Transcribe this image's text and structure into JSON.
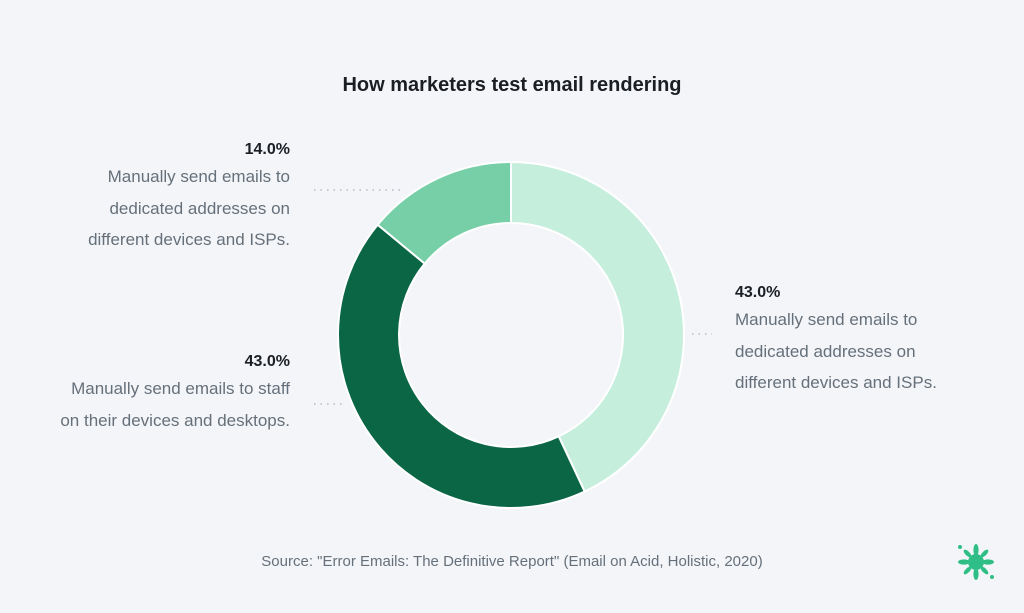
{
  "chart_data": {
    "type": "pie",
    "title": "How marketers test email rendering",
    "slices": [
      {
        "label": "Manually send emails to dedicated addresses on different devices and ISPs.",
        "value": 43.0,
        "value_label": "43.0%",
        "color": "#c6eedd"
      },
      {
        "label": "Manually send emails to staff on their devices and desktops.",
        "value": 43.0,
        "value_label": "43.0%",
        "color": "#0a6644"
      },
      {
        "label": "Manually send emails to dedicated addresses on different devices and ISPs.",
        "value": 14.0,
        "value_label": "14.0%",
        "color": "#76cfa6"
      }
    ],
    "donut": true
  },
  "footer": {
    "source": "Source: \"Error Emails: The Definitive Report\" (Email on Acid, Holistic, 2020)"
  },
  "logo_icon": "splat-logo-icon"
}
